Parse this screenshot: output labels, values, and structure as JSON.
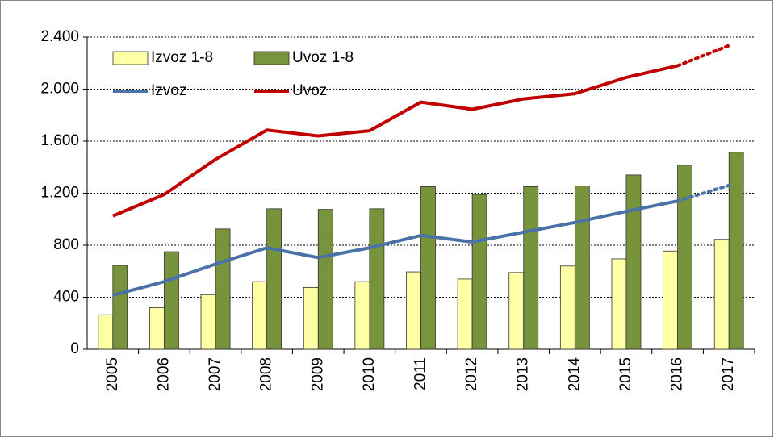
{
  "chart_data": {
    "type": "bar_line",
    "categories": [
      "2005",
      "2006",
      "2007",
      "2008",
      "2009",
      "2010",
      "2011",
      "2012",
      "2013",
      "2014",
      "2015",
      "2016",
      "2017"
    ],
    "series": [
      {
        "name": "Izvoz 1-8",
        "type": "bar",
        "color": "#ffffa6",
        "values": [
          265,
          320,
          420,
          520,
          475,
          520,
          595,
          540,
          590,
          640,
          695,
          755,
          845
        ]
      },
      {
        "name": "Uvoz 1-8",
        "type": "bar",
        "color": "#77933c",
        "values": [
          645,
          750,
          925,
          1080,
          1075,
          1080,
          1250,
          1190,
          1250,
          1255,
          1340,
          1415,
          1515
        ]
      },
      {
        "name": "Izvoz",
        "type": "line",
        "color": "#4a72a8",
        "dotted_last_segment": true,
        "values": [
          415,
          520,
          655,
          780,
          705,
          780,
          875,
          825,
          900,
          975,
          1060,
          1140,
          1260
        ]
      },
      {
        "name": "Uvoz",
        "type": "line",
        "color": "#c00000",
        "dotted_last_segment": true,
        "values": [
          1025,
          1190,
          1460,
          1685,
          1640,
          1680,
          1900,
          1845,
          1925,
          1965,
          2090,
          2180,
          2335
        ]
      }
    ],
    "ylim": [
      0,
      2400
    ],
    "yticks": [
      0,
      400,
      800,
      {
        "value": 1200,
        "label": "1.200"
      },
      {
        "value": 1600,
        "label": "1.600"
      },
      {
        "value": 2000,
        "label": "2.000"
      },
      {
        "value": 2400,
        "label": "2.400"
      }
    ],
    "grid": true,
    "legend": "top-left"
  }
}
